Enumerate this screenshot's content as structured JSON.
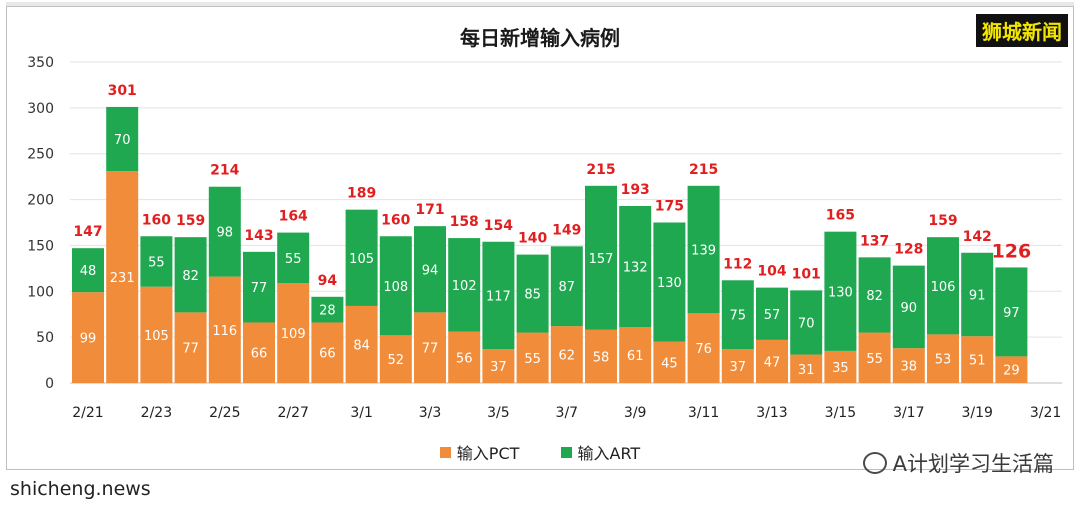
{
  "brand": "狮城新闻",
  "chart_data": {
    "type": "bar",
    "title": "每日新增输入病例",
    "tick_labels": [
      "2/21",
      "2/23",
      "2/25",
      "2/27",
      "3/1",
      "3/3",
      "3/5",
      "3/7",
      "3/9",
      "3/11",
      "3/13",
      "3/15",
      "3/17",
      "3/19",
      "3/21"
    ],
    "series": [
      {
        "name": "输入PCT",
        "color": "#f08c3a",
        "values": [
          99,
          231,
          105,
          77,
          116,
          66,
          109,
          66,
          84,
          52,
          77,
          56,
          37,
          55,
          62,
          58,
          61,
          45,
          76,
          37,
          47,
          31,
          35,
          55,
          38,
          53,
          51,
          29
        ]
      },
      {
        "name": "输入ART",
        "color": "#1fa84f",
        "values": [
          48,
          70,
          55,
          82,
          98,
          77,
          55,
          28,
          105,
          108,
          94,
          102,
          117,
          85,
          87,
          157,
          132,
          130,
          139,
          75,
          57,
          70,
          130,
          82,
          90,
          106,
          91,
          97
        ]
      }
    ],
    "totals": [
      147,
      301,
      160,
      159,
      214,
      143,
      164,
      94,
      189,
      160,
      171,
      158,
      154,
      140,
      149,
      215,
      193,
      175,
      215,
      112,
      104,
      101,
      165,
      137,
      128,
      159,
      142,
      126
    ],
    "y_ticks": [
      0,
      50,
      100,
      150,
      200,
      250,
      300,
      350
    ],
    "ylim": [
      0,
      350
    ],
    "stacked": true,
    "grid": true,
    "legend_position": "bottom",
    "total_label_color": "#e02020"
  },
  "wechat_caption": "A计划学习生活篇",
  "watermark": "shicheng.news"
}
